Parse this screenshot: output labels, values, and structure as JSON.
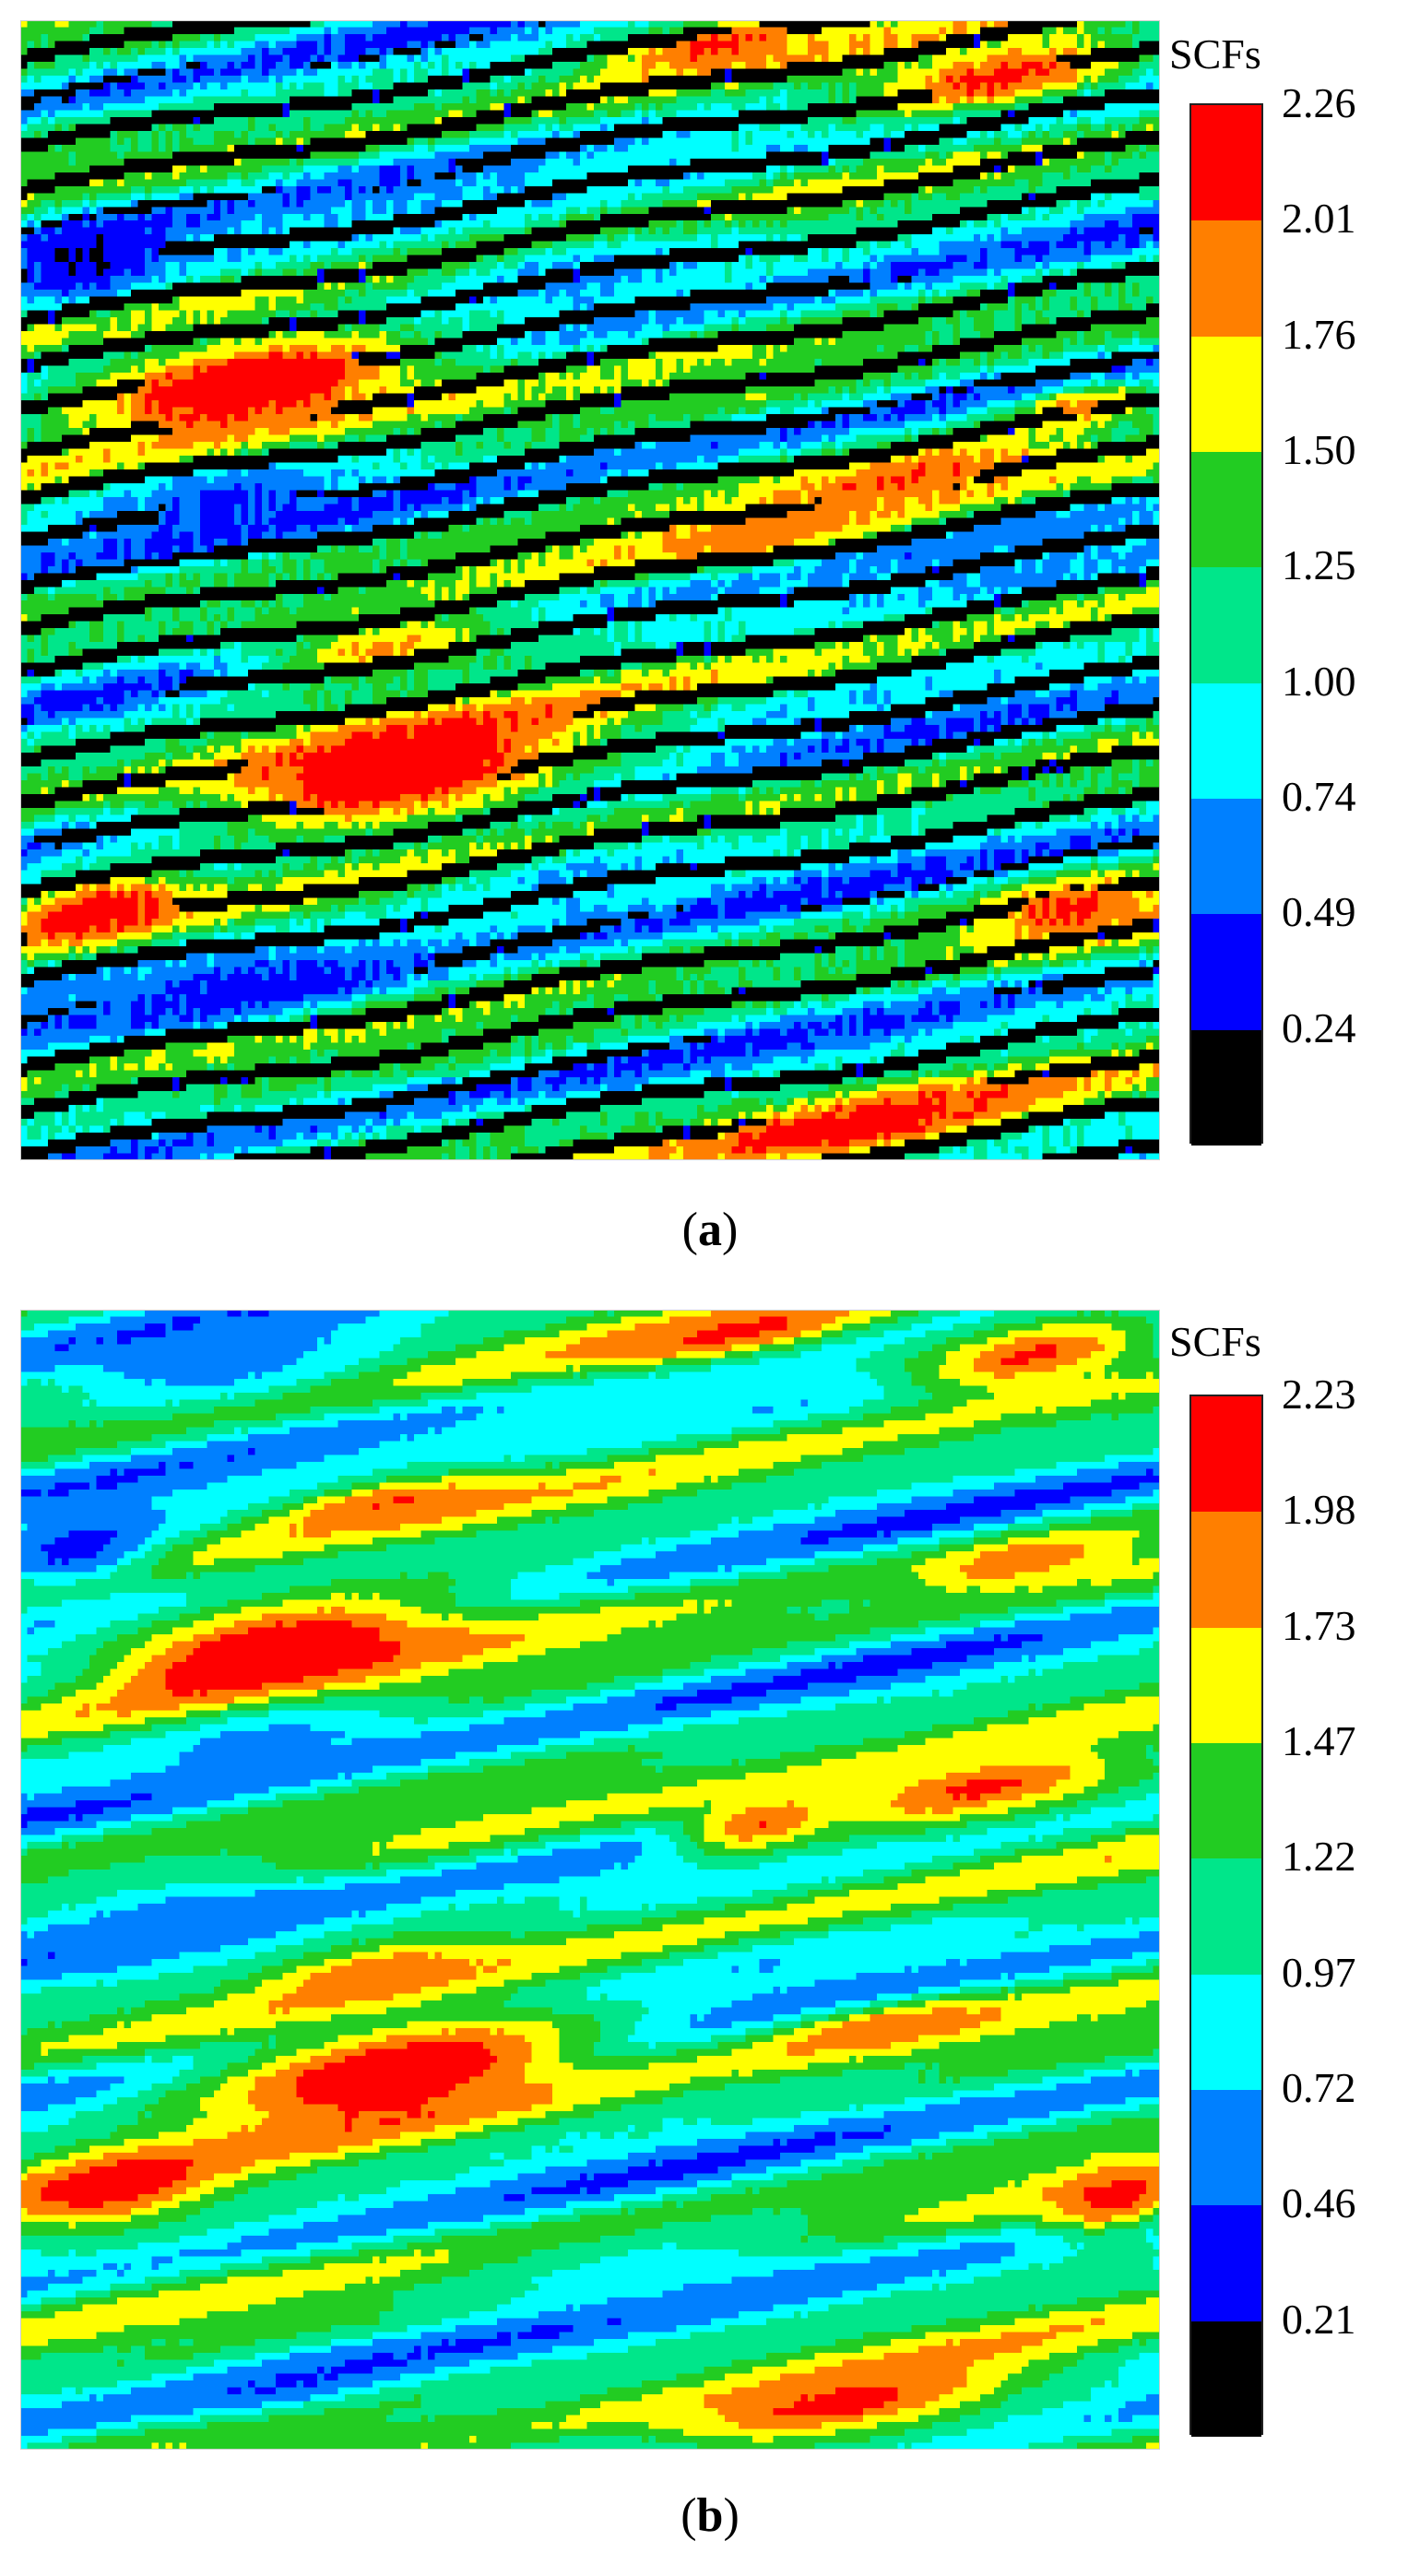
{
  "chart_data": [
    {
      "type": "heatmap",
      "panel_label": "a",
      "colorbar_title": "SCFs",
      "colorbar_ticks": [
        2.26,
        2.01,
        1.76,
        1.5,
        1.25,
        1.0,
        0.74,
        0.49,
        0.24
      ],
      "colorbar_tick_labels": [
        "2.26",
        "2.01",
        "1.76",
        "1.50",
        "1.25",
        "1.00",
        "0.74",
        "0.49",
        "0.24"
      ],
      "colorbar_colors": [
        "#ff0000",
        "#ff7f00",
        "#ffff00",
        "#22cc22",
        "#00e68a",
        "#00ffff",
        "#0080ff",
        "#0000ff",
        "#000000"
      ],
      "texture": "striated",
      "field_range": [
        0.0,
        2.26
      ],
      "features": [
        {
          "x": 0.2,
          "y": 0.32,
          "level": 2.4,
          "rx": 0.17,
          "ry": 0.045
        },
        {
          "x": 0.33,
          "y": 0.66,
          "level": 2.4,
          "rx": 0.17,
          "ry": 0.045
        },
        {
          "x": 0.07,
          "y": 0.78,
          "level": 2.25,
          "rx": 0.08,
          "ry": 0.03
        },
        {
          "x": 0.92,
          "y": 0.78,
          "level": 2.1,
          "rx": 0.08,
          "ry": 0.03
        },
        {
          "x": 0.74,
          "y": 0.97,
          "level": 2.2,
          "rx": 0.18,
          "ry": 0.03
        },
        {
          "x": 0.62,
          "y": 0.02,
          "level": 2.1,
          "rx": 0.1,
          "ry": 0.02
        },
        {
          "x": 0.86,
          "y": 0.05,
          "level": 2.1,
          "rx": 0.13,
          "ry": 0.03
        },
        {
          "x": 0.78,
          "y": 0.4,
          "level": 2.0,
          "rx": 0.15,
          "ry": 0.03
        },
        {
          "x": 0.65,
          "y": 0.45,
          "level": 1.9,
          "rx": 0.12,
          "ry": 0.025
        },
        {
          "x": 0.32,
          "y": 0.55,
          "level": 1.85,
          "rx": 0.12,
          "ry": 0.025
        },
        {
          "x": 0.93,
          "y": 0.34,
          "level": 1.9,
          "rx": 0.07,
          "ry": 0.02
        },
        {
          "x": 0.06,
          "y": 0.21,
          "level": 0.25,
          "rx": 0.08,
          "ry": 0.04
        },
        {
          "x": 0.2,
          "y": 0.85,
          "level": 0.35,
          "rx": 0.15,
          "ry": 0.03
        },
        {
          "x": 0.18,
          "y": 0.42,
          "level": 0.45,
          "rx": 0.12,
          "ry": 0.03
        },
        {
          "x": 0.5,
          "y": 0.22,
          "level": 0.65,
          "rx": 0.15,
          "ry": 0.03
        },
        {
          "x": 0.5,
          "y": 0.75,
          "level": 0.7,
          "rx": 0.14,
          "ry": 0.03
        }
      ]
    },
    {
      "type": "heatmap",
      "panel_label": "b",
      "colorbar_title": "SCFs",
      "colorbar_ticks": [
        2.23,
        1.98,
        1.73,
        1.47,
        1.22,
        0.97,
        0.72,
        0.46,
        0.21
      ],
      "colorbar_tick_labels": [
        "2.23",
        "1.98",
        "1.73",
        "1.47",
        "1.22",
        "0.97",
        "0.72",
        "0.46",
        "0.21"
      ],
      "colorbar_colors": [
        "#ff0000",
        "#ff7f00",
        "#ffff00",
        "#22cc22",
        "#00e68a",
        "#00ffff",
        "#0080ff",
        "#0000ff",
        "#000000"
      ],
      "texture": "smooth",
      "field_range": [
        0.0,
        2.23
      ],
      "features": [
        {
          "x": 0.22,
          "y": 0.3,
          "level": 2.35,
          "rx": 0.17,
          "ry": 0.045
        },
        {
          "x": 0.33,
          "y": 0.67,
          "level": 2.35,
          "rx": 0.17,
          "ry": 0.045
        },
        {
          "x": 0.08,
          "y": 0.77,
          "level": 2.15,
          "rx": 0.1,
          "ry": 0.035
        },
        {
          "x": 0.96,
          "y": 0.78,
          "level": 2.1,
          "rx": 0.06,
          "ry": 0.03
        },
        {
          "x": 0.72,
          "y": 0.96,
          "level": 2.1,
          "rx": 0.17,
          "ry": 0.03
        },
        {
          "x": 0.63,
          "y": 0.02,
          "level": 2.05,
          "rx": 0.12,
          "ry": 0.02
        },
        {
          "x": 0.89,
          "y": 0.04,
          "level": 2.05,
          "rx": 0.12,
          "ry": 0.03
        },
        {
          "x": 0.84,
          "y": 0.42,
          "level": 2.05,
          "rx": 0.15,
          "ry": 0.03
        },
        {
          "x": 0.65,
          "y": 0.45,
          "level": 2.0,
          "rx": 0.07,
          "ry": 0.025
        },
        {
          "x": 0.32,
          "y": 0.17,
          "level": 2.0,
          "rx": 0.1,
          "ry": 0.02
        },
        {
          "x": 0.31,
          "y": 0.58,
          "level": 1.95,
          "rx": 0.09,
          "ry": 0.02
        },
        {
          "x": 0.76,
          "y": 0.63,
          "level": 1.95,
          "rx": 0.11,
          "ry": 0.02
        },
        {
          "x": 0.88,
          "y": 0.22,
          "level": 1.95,
          "rx": 0.09,
          "ry": 0.02
        },
        {
          "x": 0.05,
          "y": 0.21,
          "level": 0.35,
          "rx": 0.07,
          "ry": 0.035
        },
        {
          "x": 0.24,
          "y": 0.94,
          "level": 0.45,
          "rx": 0.1,
          "ry": 0.02
        },
        {
          "x": 0.13,
          "y": 0.54,
          "level": 0.55,
          "rx": 0.14,
          "ry": 0.04
        },
        {
          "x": 0.21,
          "y": 0.38,
          "level": 0.6,
          "rx": 0.13,
          "ry": 0.03
        },
        {
          "x": 0.18,
          "y": 0.04,
          "level": 0.55,
          "rx": 0.14,
          "ry": 0.04
        },
        {
          "x": 0.55,
          "y": 0.85,
          "level": 0.75,
          "rx": 0.14,
          "ry": 0.03
        }
      ]
    }
  ]
}
